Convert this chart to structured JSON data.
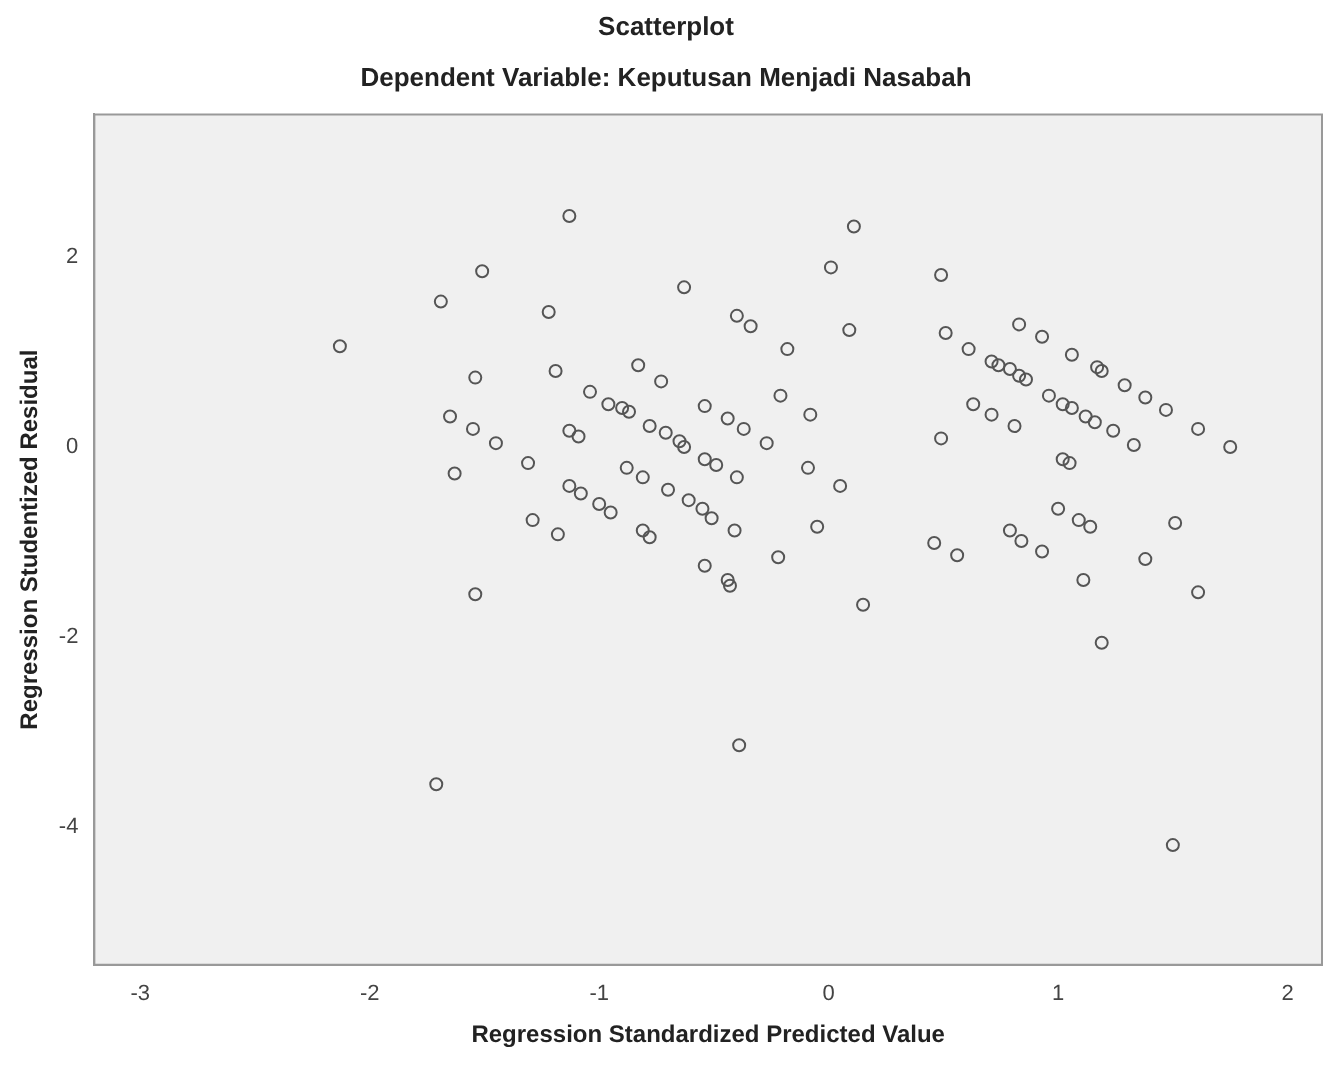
{
  "chart_data": {
    "type": "scatter",
    "title": "Scatterplot",
    "subtitle": "Dependent Variable: Keputusan Menjadi Nasabah",
    "xlabel": "Regression Standardized Predicted Value",
    "ylabel": "Regression Studentized Residual",
    "marker": "circle",
    "color": "#555555",
    "x": [
      -2.13,
      -1.69,
      -1.51,
      -1.13,
      -1.22,
      -1.54,
      -1.19,
      -1.65,
      -1.55,
      -1.45,
      -1.63,
      -1.31,
      -1.54,
      -1.29,
      -1.18,
      -1.13,
      -1.09,
      -1.13,
      -1.08,
      -1.0,
      -0.95,
      -1.04,
      -0.96,
      -0.9,
      -0.83,
      -0.88,
      -0.81,
      -0.81,
      -0.63,
      -0.4,
      -0.34,
      0.01,
      0.11,
      0.09,
      -0.18,
      -0.21,
      -0.08,
      -0.73,
      -0.87,
      -0.78,
      -0.71,
      -0.65,
      -0.63,
      -0.54,
      -0.44,
      -0.37,
      -0.27,
      -0.7,
      -0.61,
      -0.55,
      -0.51,
      -0.54,
      -0.49,
      -0.4,
      -0.09,
      0.05,
      -0.41,
      -0.05,
      -0.78,
      -0.54,
      -0.44,
      -0.43,
      -0.22,
      0.15,
      0.49,
      0.51,
      0.61,
      0.71,
      0.74,
      0.79,
      0.83,
      0.86,
      0.83,
      0.93,
      1.06,
      1.17,
      1.19,
      1.29,
      1.38,
      1.47,
      1.61,
      1.75,
      0.63,
      0.71,
      0.81,
      0.96,
      1.02,
      1.06,
      1.12,
      1.16,
      1.24,
      1.33,
      0.49,
      1.02,
      1.05,
      1.0,
      1.09,
      1.14,
      1.51,
      0.79,
      0.84,
      0.93,
      0.46,
      0.56,
      1.11,
      1.38,
      1.61,
      1.19,
      -1.71,
      -0.39,
      1.5
    ],
    "values": [
      1.06,
      1.53,
      1.85,
      2.43,
      1.42,
      0.73,
      0.8,
      0.32,
      0.19,
      0.04,
      -0.28,
      -0.17,
      -1.55,
      -0.77,
      -0.92,
      0.17,
      0.11,
      -0.41,
      -0.49,
      -0.6,
      -0.69,
      0.58,
      0.45,
      0.41,
      0.86,
      -0.22,
      -0.32,
      -0.88,
      1.68,
      1.38,
      1.27,
      1.89,
      2.32,
      1.23,
      1.03,
      0.54,
      0.34,
      0.69,
      0.37,
      0.22,
      0.15,
      0.06,
      0.0,
      0.43,
      0.3,
      0.19,
      0.04,
      -0.45,
      -0.56,
      -0.65,
      -0.75,
      -0.13,
      -0.19,
      -0.32,
      -0.22,
      -0.41,
      -0.88,
      -0.84,
      -0.95,
      -1.25,
      -1.4,
      -1.46,
      -1.16,
      -1.66,
      1.81,
      1.2,
      1.03,
      0.9,
      0.86,
      0.82,
      0.75,
      0.71,
      1.29,
      1.16,
      0.97,
      0.84,
      0.8,
      0.65,
      0.52,
      0.39,
      0.19,
      0.0,
      0.45,
      0.34,
      0.22,
      0.54,
      0.45,
      0.41,
      0.32,
      0.26,
      0.17,
      0.02,
      0.09,
      -0.13,
      -0.17,
      -0.65,
      -0.77,
      -0.84,
      -0.8,
      -0.88,
      -0.99,
      -1.1,
      -1.01,
      -1.14,
      -1.4,
      -1.18,
      -1.53,
      -2.06,
      -3.55,
      -3.14,
      -4.19
    ],
    "xlim": [
      -3.2,
      2.15
    ],
    "ylim": [
      -5.45,
      3.5
    ],
    "xticks": [
      -3,
      -2,
      -1,
      0,
      1,
      2
    ],
    "yticks": [
      -4,
      -2,
      0,
      2
    ]
  }
}
